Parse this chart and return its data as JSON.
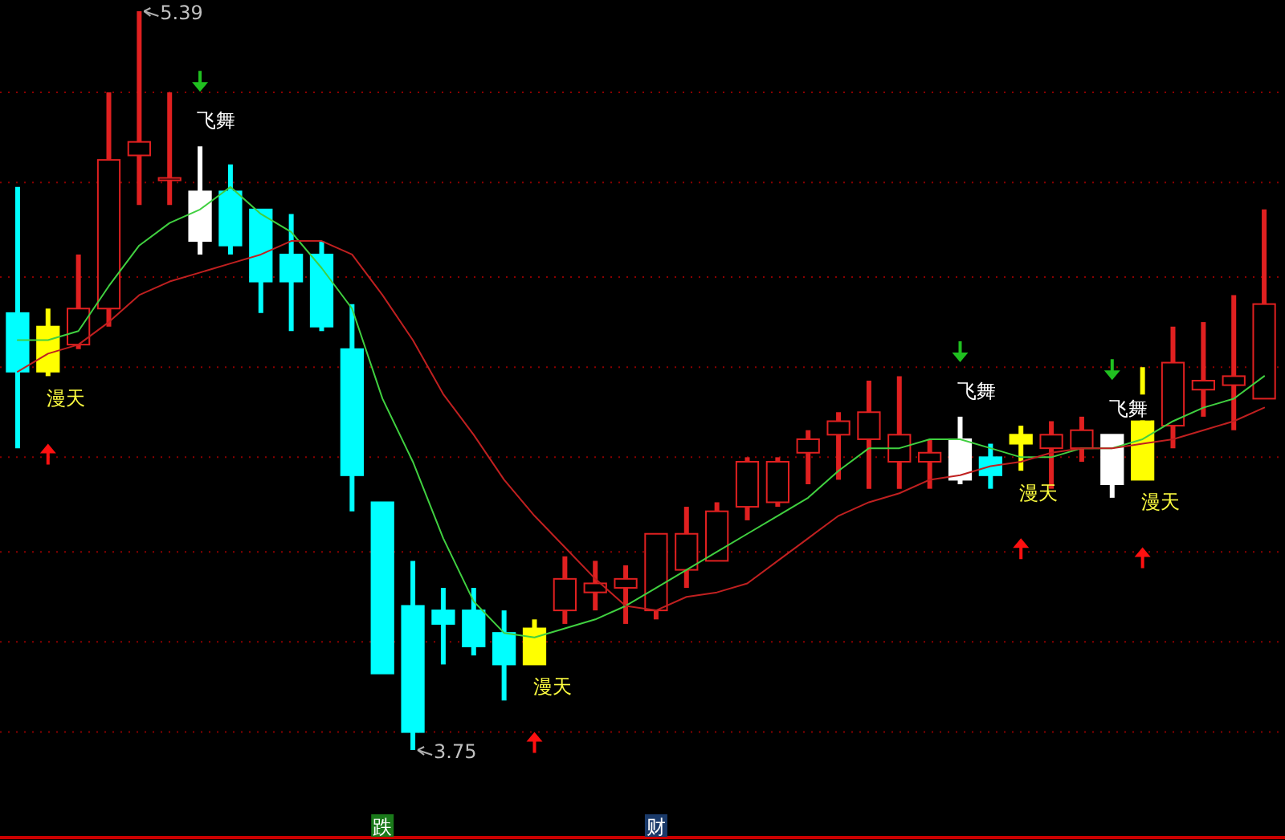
{
  "chart_data": {
    "type": "candlestick",
    "categories": [
      null,
      null,
      null,
      null,
      null,
      null,
      null,
      null,
      null,
      null,
      null,
      null,
      null,
      null,
      null,
      null,
      null,
      null,
      null,
      null,
      null,
      null,
      null,
      null,
      null,
      null,
      null,
      null,
      null,
      null,
      null,
      null,
      null,
      null,
      null,
      null,
      null,
      null,
      null,
      null,
      null,
      null
    ],
    "ohlc": [
      [
        4.72,
        5.0,
        4.42,
        4.59
      ],
      [
        4.59,
        4.73,
        4.58,
        4.69
      ],
      [
        4.65,
        4.85,
        4.64,
        4.73
      ],
      [
        4.73,
        5.21,
        4.69,
        5.06
      ],
      [
        5.07,
        5.39,
        4.96,
        5.1
      ],
      [
        5.02,
        5.21,
        4.96,
        5.02
      ],
      [
        4.99,
        5.09,
        4.85,
        4.88
      ],
      [
        4.99,
        5.05,
        4.85,
        4.87
      ],
      [
        4.95,
        4.95,
        4.72,
        4.79
      ],
      [
        4.85,
        4.94,
        4.68,
        4.79
      ],
      [
        4.85,
        4.88,
        4.68,
        4.69
      ],
      [
        4.64,
        4.74,
        4.28,
        4.36
      ],
      [
        4.3,
        4.3,
        3.92,
        3.92
      ],
      [
        4.07,
        4.17,
        3.75,
        3.79
      ],
      [
        4.06,
        4.11,
        3.94,
        4.03
      ],
      [
        4.06,
        4.11,
        3.96,
        3.98
      ],
      [
        4.01,
        4.06,
        3.86,
        3.94
      ],
      [
        3.94,
        4.04,
        3.94,
        4.02
      ],
      [
        4.06,
        4.18,
        4.03,
        4.13
      ],
      [
        4.1,
        4.17,
        4.06,
        4.12
      ],
      [
        4.11,
        4.16,
        4.03,
        4.13
      ],
      [
        4.06,
        4.23,
        4.04,
        4.23
      ],
      [
        4.15,
        4.29,
        4.11,
        4.23
      ],
      [
        4.17,
        4.3,
        4.17,
        4.28
      ],
      [
        4.29,
        4.4,
        4.26,
        4.39
      ],
      [
        4.3,
        4.4,
        4.29,
        4.39
      ],
      [
        4.41,
        4.46,
        4.34,
        4.44
      ],
      [
        4.45,
        4.5,
        4.35,
        4.48
      ],
      [
        4.44,
        4.57,
        4.33,
        4.5
      ],
      [
        4.39,
        4.58,
        4.33,
        4.45
      ],
      [
        4.39,
        4.44,
        4.33,
        4.41
      ],
      [
        4.44,
        4.49,
        4.34,
        4.35
      ],
      [
        4.4,
        4.43,
        4.33,
        4.36
      ],
      [
        4.43,
        4.47,
        4.37,
        4.45
      ],
      [
        4.42,
        4.48,
        4.33,
        4.45
      ],
      [
        4.42,
        4.49,
        4.39,
        4.46
      ],
      [
        4.45,
        4.45,
        4.31,
        4.34
      ],
      [
        4.35,
        4.6,
        4.35,
        4.48
      ],
      [
        4.47,
        4.69,
        4.42,
        4.61
      ],
      [
        4.55,
        4.7,
        4.49,
        4.57
      ],
      [
        4.56,
        4.76,
        4.46,
        4.58
      ],
      [
        4.53,
        4.95,
        4.53,
        4.74
      ]
    ],
    "colors": [
      "#00ffff",
      "#ffff00",
      "#e02020",
      "#e02020",
      "#e02020",
      "#e02020",
      "#ffffff",
      "#00ffff",
      "#00ffff",
      "#00ffff",
      "#00ffff",
      "#00ffff",
      "#00ffff",
      "#00ffff",
      "#00ffff",
      "#00ffff",
      "#00ffff",
      "#ffff00",
      "#e02020",
      "#e02020",
      "#e02020",
      "#e02020",
      "#e02020",
      "#e02020",
      "#e02020",
      "#e02020",
      "#e02020",
      "#e02020",
      "#e02020",
      "#e02020",
      "#e02020",
      "#ffffff",
      "#00ffff",
      "#ffff00",
      "#e02020",
      "#e02020",
      "#ffffff",
      "#ffff00",
      "#e02020",
      "#e02020",
      "#e02020",
      "#e02020"
    ],
    "series": [
      {
        "type": "line",
        "color": "#40d040",
        "values": [
          4.66,
          4.66,
          4.68,
          4.78,
          4.87,
          4.92,
          4.95,
          5.0,
          4.94,
          4.9,
          4.82,
          4.73,
          4.53,
          4.39,
          4.22,
          4.08,
          4.01,
          4.0,
          4.02,
          4.04,
          4.07,
          4.11,
          4.15,
          4.19,
          4.23,
          4.27,
          4.31,
          4.37,
          4.42,
          4.42,
          4.44,
          4.44,
          4.42,
          4.4,
          4.4,
          4.42,
          4.42,
          4.44,
          4.48,
          4.51,
          4.53,
          4.58
        ]
      },
      {
        "type": "line",
        "color": "#c02020",
        "values": [
          4.59,
          4.63,
          4.65,
          4.7,
          4.76,
          4.79,
          4.81,
          4.83,
          4.85,
          4.88,
          4.88,
          4.85,
          4.76,
          4.66,
          4.54,
          4.45,
          4.35,
          4.27,
          4.2,
          4.13,
          4.07,
          4.06,
          4.09,
          4.1,
          4.12,
          4.17,
          4.22,
          4.27,
          4.3,
          4.32,
          4.35,
          4.36,
          4.38,
          4.39,
          4.41,
          4.42,
          4.42,
          4.43,
          4.44,
          4.46,
          4.48,
          4.51
        ]
      }
    ],
    "yticks": [
      {
        "value": 5.21,
        "label": null
      },
      {
        "value": 5.01,
        "label": null
      },
      {
        "value": 4.8,
        "label": null
      },
      {
        "value": 4.6,
        "label": null
      },
      {
        "value": 4.4,
        "label": null
      },
      {
        "value": 4.19,
        "label": null
      },
      {
        "value": 3.99,
        "label": null
      },
      {
        "value": 3.79,
        "label": null
      }
    ],
    "grid": "y",
    "annotations": [
      "5.39",
      "3.75",
      "飞舞",
      "飞舞",
      "飞舞",
      "漫天",
      "漫天",
      "漫天",
      "漫天",
      "跌",
      "财"
    ]
  }
}
